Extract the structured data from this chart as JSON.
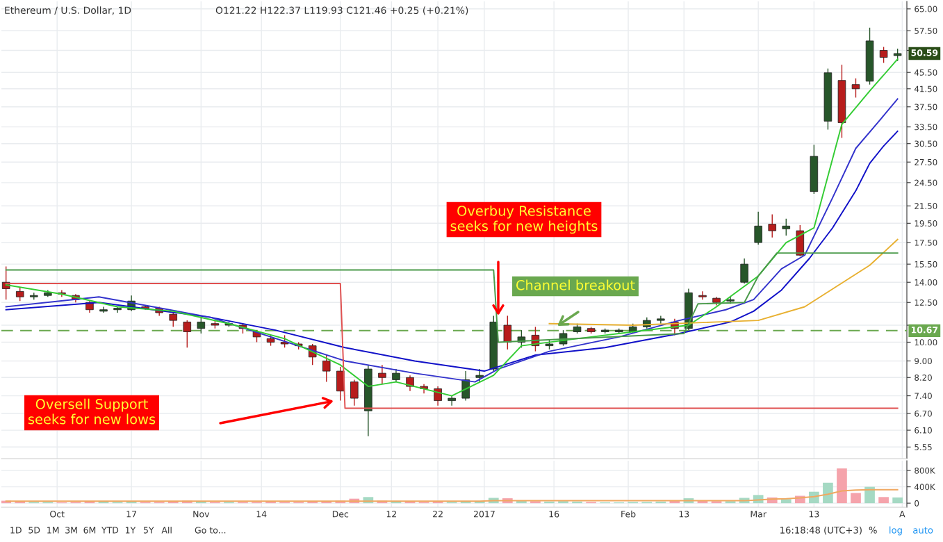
{
  "chart_data": [
    {
      "type": "candlestick",
      "title": "Ethereum / U.S. Dollar, 1D",
      "subtitle": "O121.22 H122.37 L119.93 C121.46 +0.25 (+0.21%)",
      "x": [
        "2016-09-20",
        "2016-09-23",
        "2016-09-26",
        "2016-09-29",
        "2016-10-02",
        "2016-10-05",
        "2016-10-08",
        "2016-10-11",
        "2016-10-14",
        "2016-10-17",
        "2016-10-20",
        "2016-10-23",
        "2016-10-26",
        "2016-10-29",
        "2016-11-01",
        "2016-11-04",
        "2016-11-07",
        "2016-11-10",
        "2016-11-13",
        "2016-11-16",
        "2016-11-19",
        "2016-11-22",
        "2016-11-25",
        "2016-11-28",
        "2016-12-01",
        "2016-12-04",
        "2016-12-07",
        "2016-12-10",
        "2016-12-13",
        "2016-12-16",
        "2016-12-19",
        "2016-12-22",
        "2016-12-25",
        "2016-12-28",
        "2016-12-31",
        "2017-01-03",
        "2017-01-06",
        "2017-01-09",
        "2017-01-12",
        "2017-01-15",
        "2017-01-18",
        "2017-01-21",
        "2017-01-24",
        "2017-01-27",
        "2017-01-30",
        "2017-02-02",
        "2017-02-05",
        "2017-02-08",
        "2017-02-11",
        "2017-02-14",
        "2017-02-17",
        "2017-02-20",
        "2017-02-23",
        "2017-02-26",
        "2017-03-01",
        "2017-03-04",
        "2017-03-07",
        "2017-03-10",
        "2017-03-13",
        "2017-03-16",
        "2017-03-19",
        "2017-03-22",
        "2017-03-25",
        "2017-03-28",
        "2017-03-31"
      ],
      "xticks": [
        "2016-10-01",
        "2016-10-17",
        "2016-11-01",
        "2016-11-14",
        "2016-12-01",
        "2016-12-12",
        "2016-12-22",
        "2017-01-01",
        "2017-01-16",
        "2017-02-01",
        "2017-02-13",
        "2017-03-01",
        "2017-03-13",
        "2017-04-01"
      ],
      "series": [
        {
          "ohlc": [
            [
              14.0,
              15.3,
              12.7,
              13.5
            ],
            [
              13.3,
              13.6,
              12.6,
              12.9
            ],
            [
              12.9,
              13.2,
              12.7,
              13.0
            ],
            [
              13.0,
              13.4,
              12.9,
              13.2
            ],
            [
              13.2,
              13.4,
              12.9,
              13.1
            ],
            [
              13.0,
              13.1,
              12.5,
              12.7
            ],
            [
              12.5,
              12.6,
              11.8,
              12.0
            ],
            [
              11.9,
              12.2,
              11.8,
              12.0
            ],
            [
              12.0,
              12.2,
              11.8,
              12.1
            ],
            [
              12.0,
              13.0,
              11.9,
              12.6
            ],
            [
              12.2,
              12.3,
              12.0,
              12.1
            ],
            [
              12.1,
              12.2,
              11.6,
              11.8
            ],
            [
              11.7,
              11.8,
              10.9,
              11.3
            ],
            [
              11.2,
              11.3,
              9.7,
              10.6
            ],
            [
              10.8,
              11.5,
              10.5,
              11.2
            ],
            [
              11.1,
              11.3,
              10.8,
              11.0
            ],
            [
              11.0,
              11.2,
              10.9,
              11.1
            ],
            [
              11.0,
              11.1,
              10.5,
              10.8
            ],
            [
              10.6,
              10.7,
              10.0,
              10.3
            ],
            [
              10.2,
              10.4,
              9.8,
              10.0
            ],
            [
              10.0,
              10.4,
              9.7,
              9.9
            ],
            [
              9.9,
              10.0,
              9.6,
              9.8
            ],
            [
              9.8,
              9.9,
              8.8,
              9.2
            ],
            [
              9.0,
              9.3,
              8.0,
              8.5
            ],
            [
              8.5,
              8.7,
              7.2,
              7.6
            ],
            [
              8.0,
              8.1,
              7.0,
              7.3
            ],
            [
              6.8,
              8.8,
              5.9,
              8.6
            ],
            [
              8.4,
              8.8,
              7.9,
              8.2
            ],
            [
              8.1,
              8.6,
              8.0,
              8.4
            ],
            [
              8.2,
              8.3,
              7.6,
              7.8
            ],
            [
              7.8,
              7.9,
              7.5,
              7.7
            ],
            [
              7.7,
              7.8,
              7.0,
              7.2
            ],
            [
              7.2,
              7.4,
              7.0,
              7.3
            ],
            [
              7.3,
              8.5,
              7.2,
              8.1
            ],
            [
              8.2,
              8.6,
              8.0,
              8.3
            ],
            [
              8.6,
              11.6,
              8.5,
              11.2
            ],
            [
              11.0,
              11.6,
              9.6,
              10.0
            ],
            [
              10.0,
              10.7,
              9.7,
              10.3
            ],
            [
              10.4,
              10.9,
              9.5,
              9.8
            ],
            [
              9.8,
              10.1,
              9.6,
              9.9
            ],
            [
              9.9,
              10.7,
              9.8,
              10.5
            ],
            [
              10.6,
              11.1,
              10.5,
              10.9
            ],
            [
              10.8,
              10.9,
              10.5,
              10.6
            ],
            [
              10.6,
              10.8,
              10.5,
              10.7
            ],
            [
              10.6,
              10.8,
              10.5,
              10.7
            ],
            [
              10.6,
              11.1,
              10.5,
              10.9
            ],
            [
              10.9,
              11.5,
              10.8,
              11.3
            ],
            [
              11.3,
              11.6,
              11.1,
              11.4
            ],
            [
              11.2,
              11.4,
              10.4,
              10.8
            ],
            [
              10.8,
              13.5,
              10.7,
              13.2
            ],
            [
              13.0,
              13.3,
              12.7,
              12.9
            ],
            [
              12.8,
              12.9,
              12.3,
              12.5
            ],
            [
              12.6,
              12.9,
              12.4,
              12.7
            ],
            [
              14.0,
              16.0,
              13.9,
              15.5
            ],
            [
              17.5,
              20.8,
              17.3,
              19.2
            ],
            [
              19.4,
              20.5,
              18.0,
              18.7
            ],
            [
              18.9,
              20.0,
              18.2,
              19.2
            ],
            [
              18.7,
              19.3,
              16.2,
              16.3
            ],
            [
              23.3,
              30.3,
              23.0,
              28.4
            ],
            [
              34.6,
              46.5,
              33.0,
              45.4
            ],
            [
              43.5,
              47.5,
              31.5,
              34.3
            ],
            [
              42.5,
              44.0,
              39.5,
              41.5
            ],
            [
              43.3,
              58.5,
              42.5,
              54.3
            ],
            [
              51.5,
              52.5,
              48.0,
              49.5
            ],
            [
              50.0,
              52.0,
              48.5,
              50.59
            ]
          ],
          "colors": [
            "#b71c1c",
            "#b71c1c",
            "#27562a",
            "#27562a",
            "#b71c1c",
            "#b71c1c",
            "#b71c1c",
            "#27562a",
            "#27562a",
            "#27562a",
            "#b71c1c",
            "#b71c1c",
            "#b71c1c",
            "#b71c1c",
            "#27562a",
            "#b71c1c",
            "#27562a",
            "#b71c1c",
            "#b71c1c",
            "#b71c1c",
            "#b71c1c",
            "#b71c1c",
            "#b71c1c",
            "#b71c1c",
            "#b71c1c",
            "#b71c1c",
            "#27562a",
            "#b71c1c",
            "#27562a",
            "#b71c1c",
            "#b71c1c",
            "#b71c1c",
            "#27562a",
            "#27562a",
            "#27562a",
            "#27562a",
            "#b71c1c",
            "#27562a",
            "#b71c1c",
            "#27562a",
            "#27562a",
            "#27562a",
            "#b71c1c",
            "#27562a",
            "#27562a",
            "#27562a",
            "#27562a",
            "#27562a",
            "#b71c1c",
            "#27562a",
            "#b71c1c",
            "#b71c1c",
            "#27562a",
            "#27562a",
            "#27562a",
            "#b71c1c",
            "#27562a",
            "#b71c1c",
            "#27562a",
            "#27562a",
            "#b71c1c",
            "#b71c1c",
            "#27562a",
            "#b71c1c",
            "#27562a"
          ]
        },
        {
          "type": "line",
          "color": "#1010c8",
          "x": [
            "2016-09-20",
            "2016-10-10",
            "2016-11-03",
            "2016-11-17",
            "2016-12-02",
            "2016-12-17",
            "2017-01-01",
            "2017-01-12",
            "2017-01-27",
            "2017-02-12",
            "2017-02-23",
            "2017-02-28",
            "2017-03-06",
            "2017-03-12",
            "2017-03-17",
            "2017-03-22",
            "2017-03-25",
            "2017-03-28",
            "2017-03-31"
          ],
          "values": [
            12.0,
            12.5,
            11.5,
            10.7,
            9.7,
            9.0,
            8.5,
            9.3,
            9.7,
            10.5,
            11.2,
            11.9,
            13.4,
            16.0,
            19.0,
            23.4,
            27.3,
            30.1,
            32.7
          ]
        },
        {
          "type": "line",
          "color": "#3333cc",
          "x": [
            "2016-09-20",
            "2016-10-10",
            "2016-11-03",
            "2016-12-02",
            "2016-12-17",
            "2016-12-30",
            "2017-01-04",
            "2017-01-15",
            "2017-01-30",
            "2017-02-12",
            "2017-02-22",
            "2017-02-28",
            "2017-03-06",
            "2017-03-11",
            "2017-03-17",
            "2017-03-22",
            "2017-03-27",
            "2017-03-31"
          ],
          "values": [
            12.2,
            12.9,
            11.5,
            9.0,
            8.4,
            8.0,
            8.6,
            9.5,
            10.3,
            11.3,
            12.0,
            12.7,
            15.1,
            16.3,
            22.5,
            29.7,
            34.6,
            39.2
          ]
        },
        {
          "type": "line",
          "color": "#33cc33",
          "x": [
            "2016-09-20",
            "2016-10-02",
            "2016-10-14",
            "2016-10-26",
            "2016-11-07",
            "2016-11-19",
            "2016-12-01",
            "2016-12-07",
            "2016-12-13",
            "2016-12-25",
            "2017-01-03",
            "2017-01-09",
            "2017-01-21",
            "2017-02-02",
            "2017-02-14",
            "2017-02-20",
            "2017-03-01",
            "2017-03-07",
            "2017-03-13",
            "2017-03-19",
            "2017-03-25",
            "2017-03-31"
          ],
          "values": [
            13.8,
            13.1,
            12.2,
            11.9,
            11.1,
            10.2,
            8.8,
            7.8,
            8.0,
            7.4,
            8.3,
            9.8,
            10.2,
            10.6,
            11.0,
            12.2,
            14.5,
            17.5,
            19.0,
            34.0,
            41.0,
            49.0
          ]
        },
        {
          "type": "line",
          "color": "#e8b030",
          "x": [
            "2017-01-15",
            "2017-02-02",
            "2017-02-20",
            "2017-03-01",
            "2017-03-11",
            "2017-03-25",
            "2017-03-31"
          ],
          "values": [
            11.1,
            11.0,
            11.2,
            11.3,
            12.2,
            15.4,
            17.8
          ]
        },
        {
          "type": "line",
          "color": "#e05050",
          "x": [
            "2016-09-20",
            "2016-12-01",
            "2016-12-02",
            "2017-03-31"
          ],
          "values": [
            13.9,
            13.9,
            6.9,
            6.9
          ]
        },
        {
          "type": "line",
          "color": "#4a9a4a",
          "x": [
            "2016-09-20",
            "2017-01-03",
            "2017-01-04",
            "2017-02-13",
            "2017-02-16",
            "2017-02-26",
            "2017-03-01",
            "2017-03-05",
            "2017-03-31"
          ],
          "values": [
            15.0,
            15.0,
            10.0,
            10.5,
            12.4,
            12.5,
            14.5,
            16.5,
            16.5
          ]
        }
      ],
      "xlim": [
        "2016-09-19",
        "2017-04-02"
      ],
      "log": true,
      "ylim": [
        5.2,
        67.8
      ],
      "yticks": [
        {
          "value": 5.55,
          "label": "5.55"
        },
        {
          "value": 6.1,
          "label": "6.10"
        },
        {
          "value": 6.7,
          "label": "6.70"
        },
        {
          "value": 7.4,
          "label": "7.40"
        },
        {
          "value": 8.2,
          "label": "8.20"
        },
        {
          "value": 9,
          "label": "9.00"
        },
        {
          "value": 10,
          "label": "10.00"
        },
        {
          "value": 11,
          "label": null
        },
        {
          "value": 12.5,
          "label": "12.50"
        },
        {
          "value": 14,
          "label": "14.00"
        },
        {
          "value": 15.5,
          "label": "15.50"
        },
        {
          "value": 17.5,
          "label": "17.50"
        },
        {
          "value": 19.5,
          "label": "19.50"
        },
        {
          "value": 21.5,
          "label": "21.50"
        },
        {
          "value": 24.5,
          "label": "24.50"
        },
        {
          "value": 27.5,
          "label": "27.50"
        },
        {
          "value": 30.5,
          "label": "30.50"
        },
        {
          "value": 33.5,
          "label": "33.50"
        },
        {
          "value": 37.5,
          "label": "37.50"
        },
        {
          "value": 41.5,
          "label": "41.50"
        },
        {
          "value": 45.5,
          "label": "45.50"
        },
        {
          "value": 51.5,
          "label": null
        },
        {
          "value": 57.5,
          "label": "57.50"
        },
        {
          "value": 65,
          "label": "65.00"
        }
      ],
      "tick_labels": "y",
      "grid": true,
      "ref_lines": [
        {
          "axis": "y",
          "value": 10.67,
          "label": "10.67",
          "color": "#6aa84f",
          "line_style": "dashed"
        }
      ],
      "annotations": [
        "Oversell Support\nseeks for new lows",
        "Overbuy Resistance\nseeks for new heights",
        "Channel breakout",
        "50.59"
      ]
    },
    {
      "type": "bar",
      "x": [
        "2016-09-20",
        "2016-09-23",
        "2016-09-26",
        "2016-09-29",
        "2016-10-02",
        "2016-10-05",
        "2016-10-08",
        "2016-10-11",
        "2016-10-14",
        "2016-10-17",
        "2016-10-20",
        "2016-10-23",
        "2016-10-26",
        "2016-10-29",
        "2016-11-01",
        "2016-11-04",
        "2016-11-07",
        "2016-11-10",
        "2016-11-13",
        "2016-11-16",
        "2016-11-19",
        "2016-11-22",
        "2016-11-25",
        "2016-11-28",
        "2016-12-01",
        "2016-12-04",
        "2016-12-07",
        "2016-12-10",
        "2016-12-13",
        "2016-12-16",
        "2016-12-19",
        "2016-12-22",
        "2016-12-25",
        "2016-12-28",
        "2016-12-31",
        "2017-01-03",
        "2017-01-06",
        "2017-01-09",
        "2017-01-12",
        "2017-01-15",
        "2017-01-18",
        "2017-01-21",
        "2017-01-24",
        "2017-01-27",
        "2017-01-30",
        "2017-02-02",
        "2017-02-05",
        "2017-02-08",
        "2017-02-11",
        "2017-02-14",
        "2017-02-17",
        "2017-02-20",
        "2017-02-23",
        "2017-02-26",
        "2017-03-01",
        "2017-03-04",
        "2017-03-07",
        "2017-03-10",
        "2017-03-13",
        "2017-03-16",
        "2017-03-19",
        "2017-03-22",
        "2017-03-25",
        "2017-03-28",
        "2017-03-31"
      ],
      "series": [
        {
          "values": [
            60000,
            40000,
            30000,
            30000,
            20000,
            30000,
            40000,
            40000,
            30000,
            50000,
            30000,
            30000,
            40000,
            60000,
            40000,
            30000,
            30000,
            30000,
            30000,
            40000,
            30000,
            30000,
            40000,
            50000,
            60000,
            110000,
            150000,
            60000,
            40000,
            40000,
            30000,
            40000,
            30000,
            50000,
            40000,
            130000,
            120000,
            60000,
            50000,
            40000,
            50000,
            40000,
            30000,
            20000,
            20000,
            30000,
            30000,
            40000,
            60000,
            120000,
            60000,
            50000,
            50000,
            130000,
            200000,
            140000,
            100000,
            180000,
            280000,
            500000,
            850000,
            250000,
            400000,
            150000,
            140000
          ],
          "colors": [
            "#f5a3ab",
            "#f5a3ab",
            "#a5d9c3",
            "#a5d9c3",
            "#f5a3ab",
            "#f5a3ab",
            "#f5a3ab",
            "#a5d9c3",
            "#a5d9c3",
            "#a5d9c3",
            "#f5a3ab",
            "#f5a3ab",
            "#f5a3ab",
            "#f5a3ab",
            "#a5d9c3",
            "#f5a3ab",
            "#a5d9c3",
            "#f5a3ab",
            "#f5a3ab",
            "#f5a3ab",
            "#f5a3ab",
            "#f5a3ab",
            "#f5a3ab",
            "#f5a3ab",
            "#f5a3ab",
            "#f5a3ab",
            "#a5d9c3",
            "#f5a3ab",
            "#a5d9c3",
            "#f5a3ab",
            "#f5a3ab",
            "#f5a3ab",
            "#a5d9c3",
            "#a5d9c3",
            "#a5d9c3",
            "#a5d9c3",
            "#f5a3ab",
            "#a5d9c3",
            "#f5a3ab",
            "#a5d9c3",
            "#a5d9c3",
            "#a5d9c3",
            "#f5a3ab",
            "#a5d9c3",
            "#a5d9c3",
            "#a5d9c3",
            "#a5d9c3",
            "#a5d9c3",
            "#f5a3ab",
            "#a5d9c3",
            "#f5a3ab",
            "#f5a3ab",
            "#a5d9c3",
            "#a5d9c3",
            "#a5d9c3",
            "#f5a3ab",
            "#a5d9c3",
            "#f5a3ab",
            "#a5d9c3",
            "#a5d9c3",
            "#f5a3ab",
            "#f5a3ab",
            "#a5d9c3",
            "#f5a3ab",
            "#a5d9c3"
          ]
        },
        {
          "type": "line",
          "color": "#f0a860",
          "values": [
            50000,
            50000,
            50000,
            50000,
            50000,
            50000,
            50000,
            50000,
            50000,
            50000,
            50000,
            50000,
            50000,
            50000,
            50000,
            50000,
            50000,
            50000,
            50000,
            50000,
            50000,
            50000,
            50000,
            50000,
            50000,
            50000,
            50000,
            50000,
            50000,
            50000,
            50000,
            50000,
            50000,
            50000,
            50000,
            60000,
            60000,
            60000,
            60000,
            60000,
            60000,
            60000,
            60000,
            60000,
            60000,
            60000,
            60000,
            60000,
            60000,
            60000,
            60000,
            60000,
            60000,
            60000,
            80000,
            100000,
            110000,
            130000,
            160000,
            220000,
            300000,
            320000,
            330000,
            330000,
            330000
          ]
        }
      ],
      "xlim": [
        "2016-09-19",
        "2017-04-02"
      ],
      "xticks": [
        {
          "value": "2016-10-01",
          "label": "Oct"
        },
        {
          "value": "2016-10-17",
          "label": "17"
        },
        {
          "value": "2016-11-01",
          "label": "Nov"
        },
        {
          "value": "2016-11-14",
          "label": "14"
        },
        {
          "value": "2016-12-01",
          "label": "Dec"
        },
        {
          "value": "2016-12-12",
          "label": "12"
        },
        {
          "value": "2016-12-22",
          "label": "22"
        },
        {
          "value": "2017-01-01",
          "label": "2017"
        },
        {
          "value": "2017-01-16",
          "label": "16"
        },
        {
          "value": "2017-02-01",
          "label": "Feb"
        },
        {
          "value": "2017-02-13",
          "label": "13"
        },
        {
          "value": "2017-03-01",
          "label": "Mar"
        },
        {
          "value": "2017-03-13",
          "label": "13"
        },
        {
          "value": "2017-04-01",
          "label": "A"
        }
      ],
      "ylim": [
        -100000,
        1040000
      ],
      "yticks": [
        0,
        {
          "value": 400000,
          "label": "400K"
        },
        {
          "value": 800000,
          "label": "800K"
        }
      ],
      "grid": true,
      "annotations": [
        "1D",
        "5D",
        "1M",
        "3M",
        "6M",
        "YTD",
        "1Y",
        "5Y",
        "All",
        "Go to...",
        "16:18:48 (UTC+3)",
        "%",
        "log",
        "auto"
      ]
    }
  ]
}
